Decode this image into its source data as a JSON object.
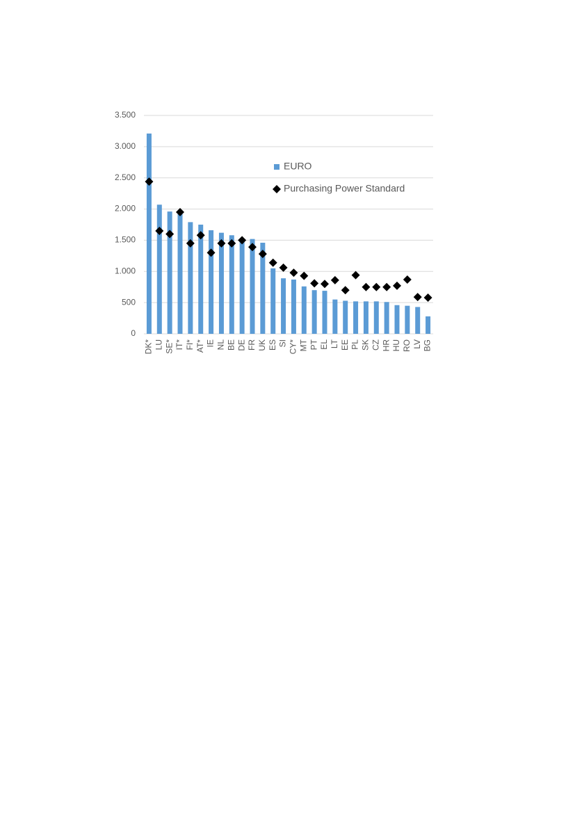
{
  "chart_data": {
    "type": "bar",
    "categories": [
      "DK*",
      "LU",
      "SE*",
      "IT*",
      "FI*",
      "AT*",
      "IE",
      "NL",
      "BE",
      "DE",
      "FR",
      "UK",
      "ES",
      "SI",
      "CY*",
      "MT",
      "PT",
      "EL",
      "LT",
      "EE",
      "PL",
      "SK",
      "CZ",
      "HR",
      "HU",
      "RO",
      "LV",
      "BG"
    ],
    "series": [
      {
        "name": "EURO",
        "type": "bar",
        "color": "#5b9bd5",
        "values": [
          3210,
          2070,
          1960,
          1920,
          1790,
          1750,
          1660,
          1620,
          1580,
          1500,
          1520,
          1460,
          1050,
          890,
          870,
          760,
          700,
          690,
          550,
          530,
          520,
          520,
          520,
          510,
          460,
          450,
          430,
          280
        ]
      },
      {
        "name": "Purchasing Power Standard",
        "type": "scatter",
        "color": "#000000",
        "values": [
          2440,
          1650,
          1600,
          1950,
          1450,
          1580,
          1300,
          1450,
          1450,
          1500,
          1390,
          1280,
          1140,
          1060,
          980,
          930,
          810,
          800,
          860,
          700,
          940,
          750,
          750,
          750,
          770,
          870,
          590,
          580
        ]
      }
    ],
    "ylim": [
      0,
      3500
    ],
    "yticks": [
      0,
      {
        "value": 500,
        "label": "500"
      },
      {
        "value": 1000,
        "label": "1.000"
      },
      {
        "value": 1500,
        "label": "1.500"
      },
      {
        "value": 2000,
        "label": "2.000"
      },
      {
        "value": 2500,
        "label": "2.500"
      },
      {
        "value": 3000,
        "label": "3.000"
      },
      {
        "value": 3500,
        "label": "3.500"
      }
    ],
    "grid": true
  }
}
